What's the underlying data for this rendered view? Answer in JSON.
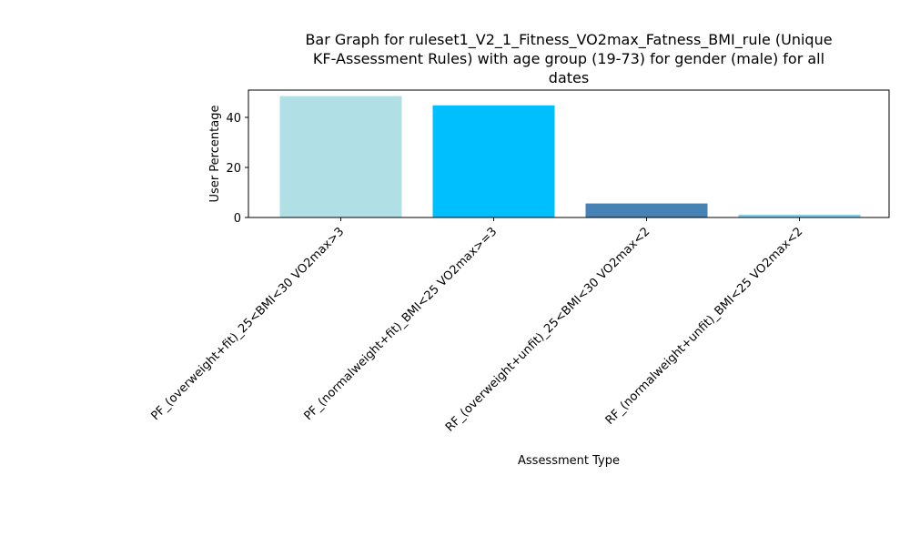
{
  "chart_data": {
    "type": "bar",
    "title_lines": [
      "Bar Graph for ruleset1_V2_1_Fitness_VO2max_Fatness_BMI_rule (Unique",
      "KF-Assessment Rules) with age group (19-73) for gender (male) for all",
      "dates"
    ],
    "xlabel": "Assessment Type",
    "ylabel": "User Percentage",
    "categories": [
      "PF_(overweight+fit)_25<BMI<30 VO2max>3",
      "PF_(normalweight+fit)_BMI<25 VO2max>=3",
      "RF_(overweight+unfit)_25<BMI<30 VO2max<2",
      "RF_(normalweight+unfit)_BMI<25 VO2max<2"
    ],
    "values": [
      48.5,
      44.8,
      5.6,
      1.1
    ],
    "colors": [
      "#b0dfe5",
      "#00bfff",
      "#4682b4",
      "#87ceeb"
    ],
    "ylim": [
      0,
      50.9
    ],
    "yticks": [
      0,
      20,
      40
    ],
    "grid": false
  }
}
